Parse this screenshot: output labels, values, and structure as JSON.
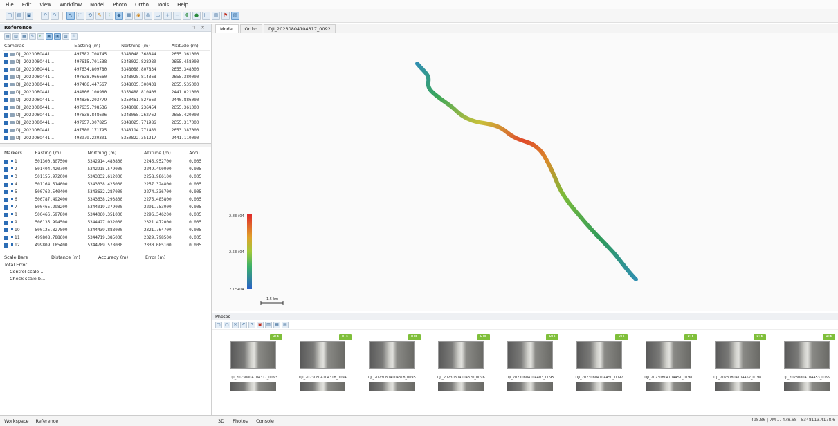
{
  "menu": [
    "File",
    "Edit",
    "View",
    "Workflow",
    "Model",
    "Photo",
    "Ortho",
    "Tools",
    "Help"
  ],
  "reference_panel": {
    "title": "Reference",
    "cameras": {
      "headers": [
        "Cameras",
        "Easting (m)",
        "Northing (m)",
        "Altitude (m)"
      ],
      "rows": [
        {
          "name": "DJI_2023080441...",
          "easting": "497582.708745",
          "northing": "5348048.368844",
          "altitude": "2655.361000"
        },
        {
          "name": "DJI_2023080441...",
          "easting": "497615.701538",
          "northing": "5348022.828980",
          "altitude": "2655.458000"
        },
        {
          "name": "DJI_2023080441...",
          "easting": "497634.809780",
          "northing": "5348088.807834",
          "altitude": "2655.348000"
        },
        {
          "name": "DJI_2023080441...",
          "easting": "497638.966660",
          "northing": "5348028.814368",
          "altitude": "2655.380000"
        },
        {
          "name": "DJI_2023080441...",
          "easting": "497406.447567",
          "northing": "5348035.300438",
          "altitude": "2655.535000"
        },
        {
          "name": "DJI_2023080441...",
          "easting": "494806.100980",
          "northing": "5350488.810406",
          "altitude": "2441.021000"
        },
        {
          "name": "DJI_2023080441...",
          "easting": "494836.203779",
          "northing": "5350461.527660",
          "altitude": "2440.886000"
        },
        {
          "name": "DJI_2023080441...",
          "easting": "497635.798536",
          "northing": "5348088.236454",
          "altitude": "2655.361000"
        },
        {
          "name": "DJI_2023080441...",
          "easting": "497638.848606",
          "northing": "5348065.262762",
          "altitude": "2655.420000"
        },
        {
          "name": "DJI_2023080441...",
          "easting": "497657.307825",
          "northing": "5348025.771986",
          "altitude": "2655.317000"
        },
        {
          "name": "DJI_2023080441...",
          "easting": "497580.171795",
          "northing": "5348114.771480",
          "altitude": "2653.387000"
        },
        {
          "name": "DJI_2023080441...",
          "easting": "493979.220301",
          "northing": "5350822.351217",
          "altitude": "2441.110000"
        }
      ]
    },
    "markers": {
      "headers": [
        "Markers",
        "Easting (m)",
        "Northing (m)",
        "Altitude (m)",
        "Accu"
      ],
      "rows": [
        {
          "name": "1",
          "easting": "501300.807500",
          "northing": "5342914.480800",
          "altitude": "2245.952700",
          "acc": "0.005"
        },
        {
          "name": "2",
          "easting": "501404.420700",
          "northing": "5342915.579000",
          "altitude": "2249.490000",
          "acc": "0.005"
        },
        {
          "name": "3",
          "easting": "501155.972000",
          "northing": "5343332.612000",
          "altitude": "2258.986100",
          "acc": "0.005"
        },
        {
          "name": "4",
          "easting": "501164.514000",
          "northing": "5343338.425000",
          "altitude": "2257.324800",
          "acc": "0.005"
        },
        {
          "name": "5",
          "easting": "500762.540400",
          "northing": "5343632.287000",
          "altitude": "2274.336700",
          "acc": "0.005"
        },
        {
          "name": "6",
          "easting": "500787.492400",
          "northing": "5343638.293800",
          "altitude": "2275.485800",
          "acc": "0.005"
        },
        {
          "name": "7",
          "easting": "500465.298200",
          "northing": "5344019.379000",
          "altitude": "2291.753000",
          "acc": "0.005"
        },
        {
          "name": "8",
          "easting": "500466.597800",
          "northing": "5344060.351000",
          "altitude": "2296.346200",
          "acc": "0.005"
        },
        {
          "name": "9",
          "easting": "500135.994500",
          "northing": "5344427.032000",
          "altitude": "2321.472000",
          "acc": "0.005"
        },
        {
          "name": "10",
          "easting": "500125.827800",
          "northing": "5344439.888000",
          "altitude": "2321.764700",
          "acc": "0.005"
        },
        {
          "name": "11",
          "easting": "499808.788600",
          "northing": "5344719.385000",
          "altitude": "2329.798500",
          "acc": "0.005"
        },
        {
          "name": "12",
          "easting": "499809.185400",
          "northing": "5344789.578000",
          "altitude": "2330.085100",
          "acc": "0.005"
        }
      ]
    },
    "scalebars": {
      "headers": [
        "Scale Bars",
        "Distance (m)",
        "Accuracy (m)",
        "Error (m)"
      ],
      "total_errors": "Total Error",
      "items": [
        "Control scale ...",
        "Check scale b..."
      ]
    }
  },
  "left_tabs": [
    "Workspace",
    "Reference"
  ],
  "view_tabs": [
    "Model",
    "Ortho",
    "DJI_20230804104317_0092"
  ],
  "colorbar": {
    "max": "2.8E+04",
    "mid": "2.5E+04",
    "min": "2.1E+04"
  },
  "scale_label": "1.5 km",
  "photos_panel": {
    "title": "Photos",
    "thumbs": [
      "DJI_20230804104317_0093",
      "DJI_20230804104318_0094",
      "DJI_20230804104318_0095",
      "DJI_20230804104320_0096",
      "DJI_20230804104403_0095",
      "DJI_20230804104450_0097",
      "DJI_20230804104451_0198",
      "DJI_20230804104452_0198",
      "DJI_20230804104453_0199"
    ],
    "badge": "RTK"
  },
  "bottom_tabs": [
    "3D",
    "Photos",
    "Console"
  ],
  "status": "498.86 | 7M ... 478.68 | 5348113.4178.6"
}
